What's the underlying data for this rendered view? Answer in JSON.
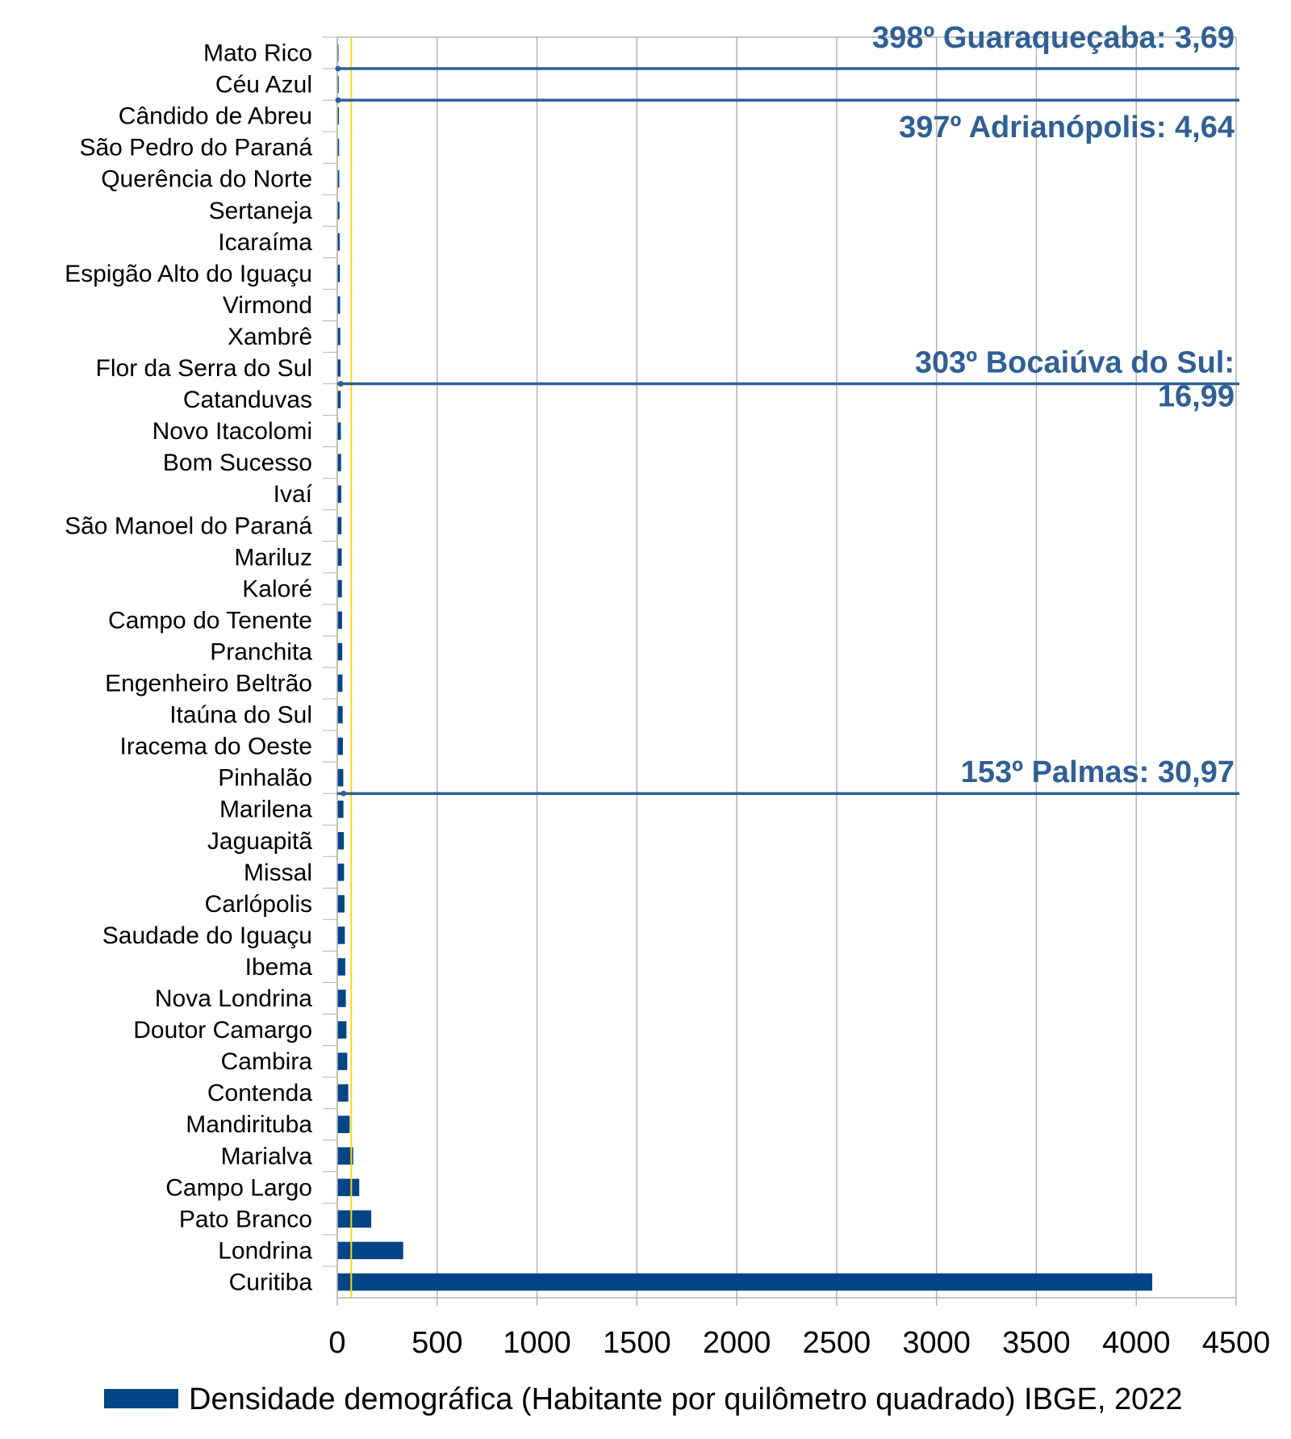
{
  "chart_data": {
    "type": "bar",
    "orientation": "horizontal",
    "title": "",
    "xlabel": "",
    "ylabel": "",
    "xlim": [
      0,
      4500
    ],
    "x_ticks": [
      0,
      500,
      1000,
      1500,
      2000,
      2500,
      3000,
      3500,
      4000,
      4500
    ],
    "grid": "vertical",
    "legend_position": "bottom",
    "series_name": "Densidade demográfica (Habitante por quilômetro quadrado) IBGE, 2022",
    "series_color": "#004586",
    "reference_line": {
      "value": 70,
      "color": "#ffd320"
    },
    "categories": [
      "Mato Rico",
      "Céu Azul",
      "Cândido de Abreu",
      "São Pedro do Paraná",
      "Querência do Norte",
      "Sertaneja",
      "Icaraíma",
      "Espigão Alto do Iguaçu",
      "Virmond",
      "Xambrê",
      "Flor da Serra do Sul",
      "Catanduvas",
      "Novo Itacolomi",
      "Bom Sucesso",
      "Ivaí",
      "São Manoel do Paraná",
      "Mariluz",
      "Kaloré",
      "Campo do Tenente",
      "Pranchita",
      "Engenheiro Beltrão",
      "Itaúna do Sul",
      "Iracema do Oeste",
      "Pinhalão",
      "Marilena",
      "Jaguapitã",
      "Missal",
      "Carlópolis",
      "Saudade do Iguaçu",
      "Ibema",
      "Nova Londrina",
      "Doutor Camargo",
      "Cambira",
      "Contenda",
      "Mandirituba",
      "Marialva",
      "Campo Largo",
      "Pato Branco",
      "Londrina",
      "Curitiba"
    ],
    "values": [
      6,
      7,
      8,
      9,
      10,
      11,
      12,
      13,
      14,
      15,
      16,
      17,
      18,
      19,
      20,
      21,
      22,
      23,
      24,
      25,
      26,
      27,
      28,
      30,
      31,
      33,
      34,
      36,
      38,
      40,
      43,
      46,
      50,
      55,
      62,
      80,
      110,
      170,
      330,
      4080
    ],
    "annotations": [
      {
        "lines": [
          "398º Guaraqueçaba: 3,69"
        ],
        "at_category": "Mato Rico",
        "value": 3.69
      },
      {
        "lines": [
          "397º Adrianópolis: 4,64"
        ],
        "at_category": "Céu Azul",
        "value": 4.64
      },
      {
        "lines": [
          "303º Bocaiúva do Sul:",
          "16,99"
        ],
        "at_category": "Flor da Serra do Sul",
        "value": 16.99
      },
      {
        "lines": [
          "153º Palmas: 30,97"
        ],
        "at_category": "Pinhalão",
        "value": 30.97
      }
    ]
  }
}
